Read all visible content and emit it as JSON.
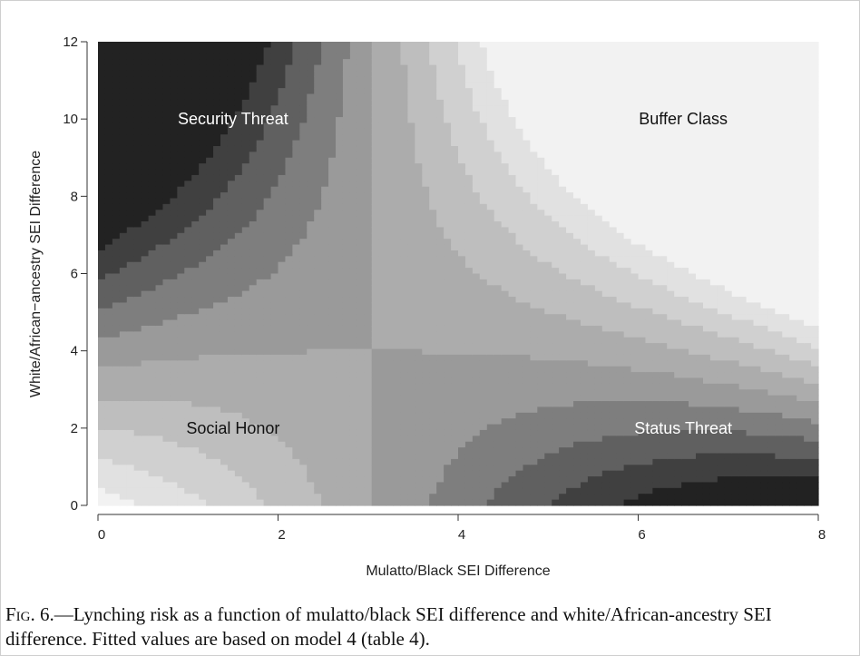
{
  "chart_data": {
    "type": "heatmap",
    "title": "",
    "xlabel": "Mulatto/Black SEI Difference",
    "ylabel": "White/African−ancestry SEI Difference",
    "xlim": [
      0,
      8
    ],
    "ylim": [
      0,
      12
    ],
    "xticks": [
      "0",
      "2",
      "4",
      "6",
      "8"
    ],
    "yticks": [
      "0",
      "2",
      "4",
      "6",
      "8",
      "10",
      "12"
    ],
    "model": "fitted lynching risk (filled contour), saddle centered near x=3.0, y=4.0",
    "levels": 9,
    "palette": [
      "#f2f2f2",
      "#e1e1e1",
      "#d0d0d0",
      "#bebebe",
      "#acacac",
      "#9a9a9a",
      "#7e7e7e",
      "#606060",
      "#404040",
      "#222222"
    ],
    "region_labels": [
      {
        "text": "Security Threat",
        "x": 1.5,
        "y": 10,
        "color": "#ffffff"
      },
      {
        "text": "Buffer Class",
        "x": 6.5,
        "y": 10,
        "color": "#111111"
      },
      {
        "text": "Social Honor",
        "x": 1.5,
        "y": 2,
        "color": "#111111"
      },
      {
        "text": "Status Threat",
        "x": 6.5,
        "y": 2,
        "color": "#ffffff"
      }
    ]
  },
  "caption": {
    "prefix": "Fig. 6.",
    "text": "—Lynching risk as a function of mulatto/black SEI difference and white/African-ancestry SEI difference. Fitted values are based on model 4 (table 4)."
  }
}
